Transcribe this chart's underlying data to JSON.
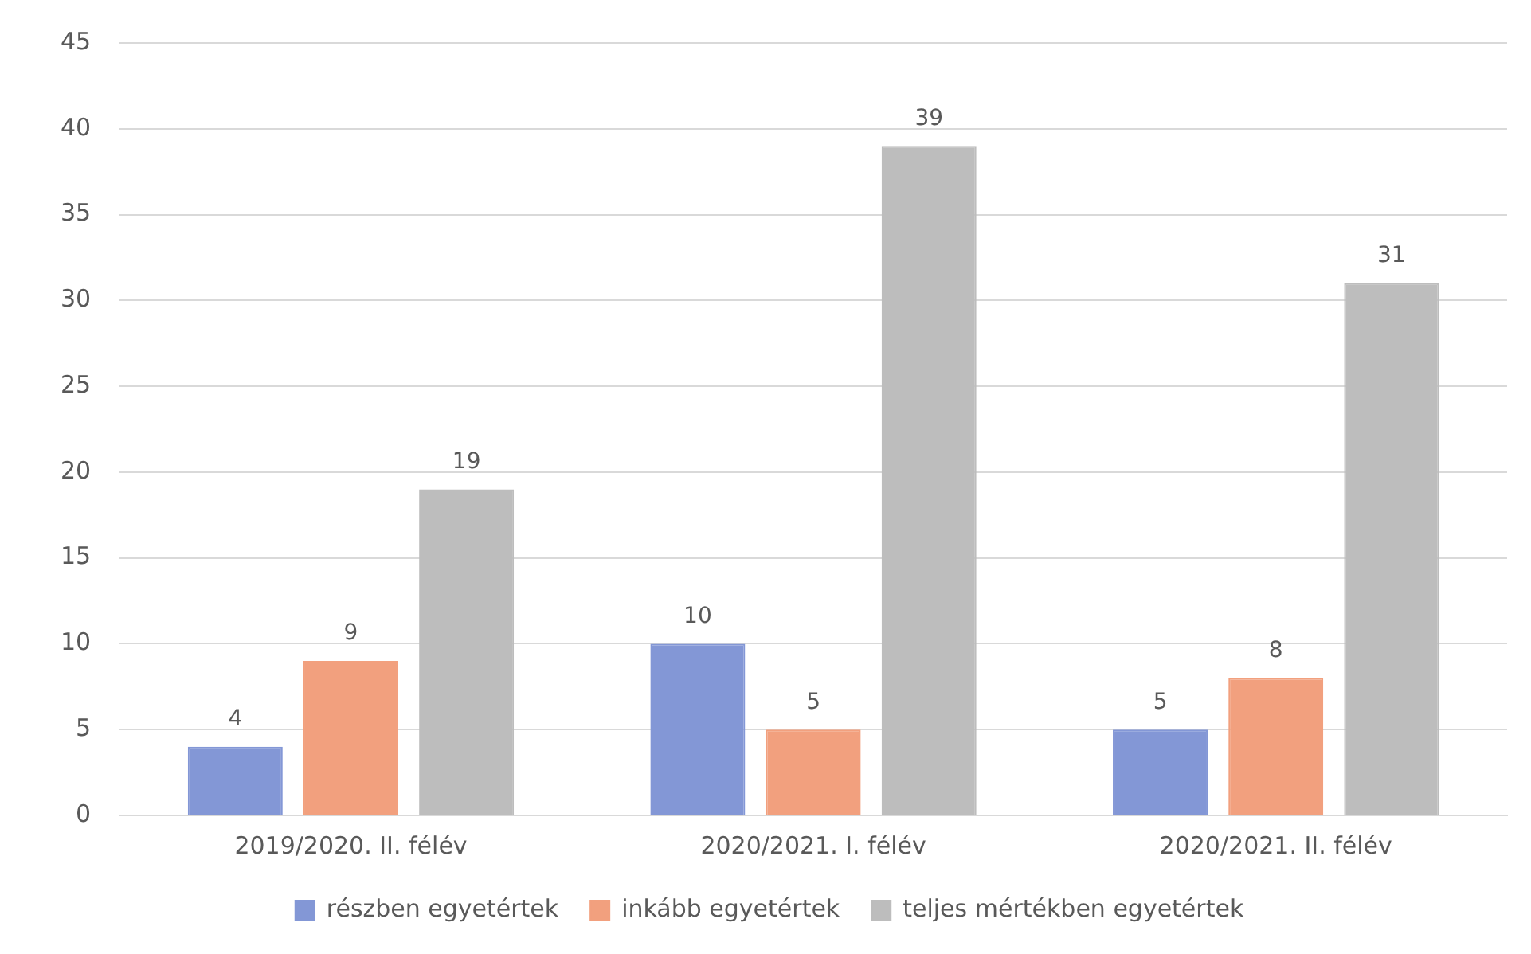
{
  "chart_data": {
    "type": "bar",
    "categories": [
      "2019/2020. II. félév",
      "2020/2021. I. félév",
      "2020/2021. II. félév"
    ],
    "series": [
      {
        "name": "részben egyetértek",
        "color": "#8397d6",
        "values": [
          4,
          10,
          5
        ]
      },
      {
        "name": "inkább egyetértek",
        "color": "#f2a07e",
        "values": [
          9,
          5,
          8
        ]
      },
      {
        "name": "teljes mértékben egyetértek",
        "color": "#bdbdbd",
        "values": [
          19,
          39,
          31
        ]
      }
    ],
    "ylim": [
      0,
      45
    ],
    "yticks": [
      0,
      5,
      10,
      15,
      20,
      25,
      30,
      35,
      40,
      45
    ],
    "grid": "y",
    "legend": "bottom",
    "data_labels": true
  }
}
